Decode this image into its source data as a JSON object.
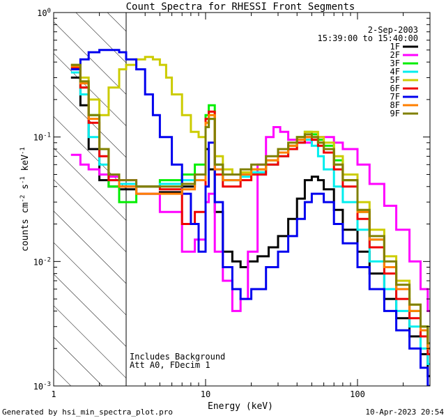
{
  "chart_data": {
    "type": "line",
    "title": "Count Spectra for RHESSI Front Segments",
    "xlabel": "Energy (keV)",
    "ylabel_main": "counts cm",
    "ylabel_sup1": "-2",
    "ylabel_mid": " s",
    "ylabel_sup2": "-1",
    "ylabel_end": " keV",
    "ylabel_sup3": "-1",
    "xscale": "log",
    "yscale": "log",
    "xlim": [
      1,
      300
    ],
    "ylim": [
      0.001,
      1
    ],
    "shaded_region_xmax": 3,
    "x_ticks": [
      {
        "value": 1,
        "label": "1"
      },
      {
        "value": 10,
        "label": "10"
      },
      {
        "value": 100,
        "label": "100"
      }
    ],
    "y_ticks": [
      {
        "value": 1,
        "base": "10",
        "exp": "0"
      },
      {
        "value": 0.1,
        "base": "10",
        "exp": "-1"
      },
      {
        "value": 0.01,
        "base": "10",
        "exp": "-2"
      },
      {
        "value": 0.001,
        "base": "10",
        "exp": "-3"
      }
    ],
    "legend_header": [
      "2-Sep-2003",
      "15:39:00 to 15:40:00"
    ],
    "legend_position": "top-right",
    "annotations": [
      "Includes Background",
      "Att A0, FDecim 1"
    ],
    "footer_left": "Generated by hsi_min_spectra_plot.pro",
    "footer_right": "10-Apr-2023 20:54",
    "series": [
      {
        "name": "1F",
        "color": "#000000",
        "width": 3,
        "x": [
          1.3,
          1.5,
          1.7,
          2,
          2.3,
          2.7,
          3.5,
          5,
          7,
          8.5,
          10,
          10.5,
          11.5,
          13,
          15,
          17,
          19,
          22,
          26,
          30,
          35,
          40,
          45,
          50,
          55,
          60,
          70,
          80,
          100,
          120,
          150,
          180,
          220,
          260,
          290
        ],
        "y": [
          0.3,
          0.18,
          0.08,
          0.045,
          0.04,
          0.038,
          0.035,
          0.036,
          0.04,
          0.05,
          0.08,
          0.055,
          0.025,
          0.012,
          0.01,
          0.009,
          0.01,
          0.011,
          0.013,
          0.016,
          0.022,
          0.032,
          0.045,
          0.048,
          0.045,
          0.038,
          0.026,
          0.018,
          0.012,
          0.008,
          0.005,
          0.0035,
          0.0025,
          0.0018,
          0.0012
        ]
      },
      {
        "name": "2F",
        "color": "#ff00ff",
        "width": 3,
        "x": [
          1.3,
          1.5,
          1.7,
          2,
          2.3,
          2.7,
          3.5,
          5,
          7,
          8.5,
          10,
          10.5,
          11.5,
          13,
          15,
          17,
          19,
          22,
          25,
          28,
          31,
          35,
          40,
          45,
          50,
          55,
          60,
          70,
          80,
          100,
          120,
          150,
          180,
          220,
          260,
          290
        ],
        "y": [
          0.072,
          0.06,
          0.055,
          0.05,
          0.048,
          0.045,
          0.035,
          0.025,
          0.012,
          0.015,
          0.03,
          0.035,
          0.012,
          0.007,
          0.004,
          0.005,
          0.012,
          0.06,
          0.1,
          0.12,
          0.11,
          0.095,
          0.09,
          0.09,
          0.095,
          0.1,
          0.1,
          0.09,
          0.08,
          0.06,
          0.042,
          0.028,
          0.018,
          0.01,
          0.006,
          0.004
        ]
      },
      {
        "name": "3F",
        "color": "#00ee00",
        "width": 3,
        "x": [
          1.3,
          1.5,
          1.7,
          2,
          2.3,
          2.7,
          3.5,
          5,
          7,
          8.5,
          10,
          10.5,
          11.5,
          13,
          15,
          17,
          20,
          25,
          30,
          35,
          40,
          45,
          50,
          55,
          60,
          70,
          80,
          100,
          120,
          150,
          180,
          220,
          260,
          290
        ],
        "y": [
          0.35,
          0.25,
          0.15,
          0.08,
          0.04,
          0.03,
          0.04,
          0.045,
          0.05,
          0.06,
          0.15,
          0.18,
          0.06,
          0.045,
          0.045,
          0.05,
          0.055,
          0.065,
          0.075,
          0.085,
          0.1,
          0.11,
          0.105,
          0.095,
          0.085,
          0.065,
          0.045,
          0.025,
          0.015,
          0.009,
          0.006,
          0.004,
          0.003,
          0.002
        ]
      },
      {
        "name": "4F",
        "color": "#00eeee",
        "width": 3,
        "x": [
          1.3,
          1.5,
          1.7,
          2,
          2.3,
          2.7,
          3.5,
          5,
          7,
          8.5,
          10,
          10.5,
          11.5,
          13,
          15,
          17,
          20,
          25,
          30,
          35,
          40,
          45,
          50,
          55,
          60,
          70,
          80,
          100,
          120,
          150,
          180,
          220,
          260,
          290
        ],
        "y": [
          0.33,
          0.22,
          0.1,
          0.06,
          0.045,
          0.042,
          0.04,
          0.042,
          0.045,
          0.05,
          0.12,
          0.14,
          0.055,
          0.045,
          0.045,
          0.048,
          0.052,
          0.06,
          0.07,
          0.08,
          0.09,
          0.095,
          0.085,
          0.07,
          0.055,
          0.04,
          0.03,
          0.018,
          0.01,
          0.006,
          0.004,
          0.003,
          0.002,
          0.0015
        ]
      },
      {
        "name": "5F",
        "color": "#cccc00",
        "width": 3,
        "x": [
          1.3,
          1.5,
          1.7,
          2,
          2.3,
          2.7,
          3,
          3.5,
          4,
          4.5,
          5,
          5.5,
          6,
          7,
          8,
          9,
          10,
          10.5,
          11.5,
          13,
          15,
          17,
          20,
          25,
          30,
          35,
          40,
          45,
          50,
          55,
          60,
          70,
          80,
          100,
          120,
          150,
          180,
          220,
          260,
          290
        ],
        "y": [
          0.38,
          0.3,
          0.2,
          0.15,
          0.25,
          0.35,
          0.38,
          0.42,
          0.44,
          0.42,
          0.38,
          0.3,
          0.22,
          0.15,
          0.11,
          0.1,
          0.13,
          0.15,
          0.07,
          0.055,
          0.05,
          0.052,
          0.055,
          0.065,
          0.075,
          0.085,
          0.095,
          0.11,
          0.11,
          0.1,
          0.09,
          0.07,
          0.05,
          0.03,
          0.018,
          0.011,
          0.007,
          0.0045,
          0.003,
          0.002
        ]
      },
      {
        "name": "6F",
        "color": "#ee0000",
        "width": 3,
        "x": [
          1.3,
          1.5,
          1.7,
          2,
          2.3,
          2.7,
          3.5,
          5,
          7,
          8.5,
          10,
          10.5,
          11.5,
          13,
          15,
          17,
          20,
          25,
          30,
          35,
          40,
          45,
          50,
          55,
          60,
          70,
          80,
          100,
          120,
          150,
          180,
          220,
          260,
          290
        ],
        "y": [
          0.36,
          0.25,
          0.13,
          0.07,
          0.045,
          0.04,
          0.04,
          0.038,
          0.02,
          0.025,
          0.14,
          0.16,
          0.05,
          0.04,
          0.04,
          0.045,
          0.05,
          0.06,
          0.07,
          0.08,
          0.09,
          0.1,
          0.095,
          0.085,
          0.075,
          0.055,
          0.04,
          0.022,
          0.013,
          0.008,
          0.005,
          0.0035,
          0.0025,
          0.0018
        ]
      },
      {
        "name": "7F",
        "color": "#0000ee",
        "width": 3,
        "x": [
          1.3,
          1.5,
          1.7,
          2,
          2.3,
          2.7,
          3,
          3.5,
          4,
          4.5,
          5,
          6,
          7,
          8,
          9,
          10,
          10.5,
          11.5,
          13,
          15,
          17,
          20,
          25,
          30,
          35,
          40,
          45,
          50,
          55,
          60,
          70,
          80,
          100,
          120,
          150,
          180,
          220,
          260,
          290
        ],
        "y": [
          0.35,
          0.42,
          0.48,
          0.5,
          0.5,
          0.48,
          0.42,
          0.35,
          0.22,
          0.15,
          0.1,
          0.06,
          0.035,
          0.02,
          0.012,
          0.04,
          0.09,
          0.03,
          0.009,
          0.006,
          0.005,
          0.006,
          0.009,
          0.012,
          0.016,
          0.022,
          0.03,
          0.035,
          0.035,
          0.03,
          0.02,
          0.014,
          0.009,
          0.006,
          0.004,
          0.0028,
          0.002,
          0.0014,
          0.001
        ]
      },
      {
        "name": "8F",
        "color": "#ff7f00",
        "width": 3,
        "x": [
          1.3,
          1.5,
          1.7,
          2,
          2.3,
          2.7,
          3.5,
          5,
          7,
          8.5,
          10,
          10.5,
          11.5,
          13,
          15,
          17,
          20,
          25,
          30,
          35,
          40,
          45,
          50,
          55,
          60,
          70,
          80,
          100,
          120,
          150,
          180,
          220,
          260,
          290
        ],
        "y": [
          0.37,
          0.27,
          0.14,
          0.08,
          0.05,
          0.04,
          0.035,
          0.035,
          0.038,
          0.045,
          0.13,
          0.15,
          0.055,
          0.045,
          0.045,
          0.05,
          0.055,
          0.065,
          0.075,
          0.085,
          0.095,
          0.1,
          0.1,
          0.09,
          0.08,
          0.06,
          0.045,
          0.025,
          0.015,
          0.009,
          0.006,
          0.004,
          0.0028,
          0.002
        ]
      },
      {
        "name": "9F",
        "color": "#808000",
        "width": 3,
        "x": [
          1.3,
          1.5,
          1.7,
          2,
          2.3,
          2.7,
          3.5,
          5,
          7,
          8.5,
          10,
          10.5,
          11.5,
          13,
          15,
          17,
          20,
          25,
          30,
          35,
          40,
          45,
          50,
          55,
          60,
          70,
          80,
          100,
          120,
          150,
          180,
          220,
          260,
          290
        ],
        "y": [
          0.38,
          0.28,
          0.15,
          0.08,
          0.05,
          0.045,
          0.04,
          0.04,
          0.042,
          0.05,
          0.12,
          0.14,
          0.06,
          0.05,
          0.05,
          0.055,
          0.06,
          0.07,
          0.08,
          0.09,
          0.1,
          0.105,
          0.1,
          0.09,
          0.08,
          0.06,
          0.045,
          0.026,
          0.016,
          0.01,
          0.0065,
          0.0045,
          0.003,
          0.0022
        ]
      }
    ]
  }
}
